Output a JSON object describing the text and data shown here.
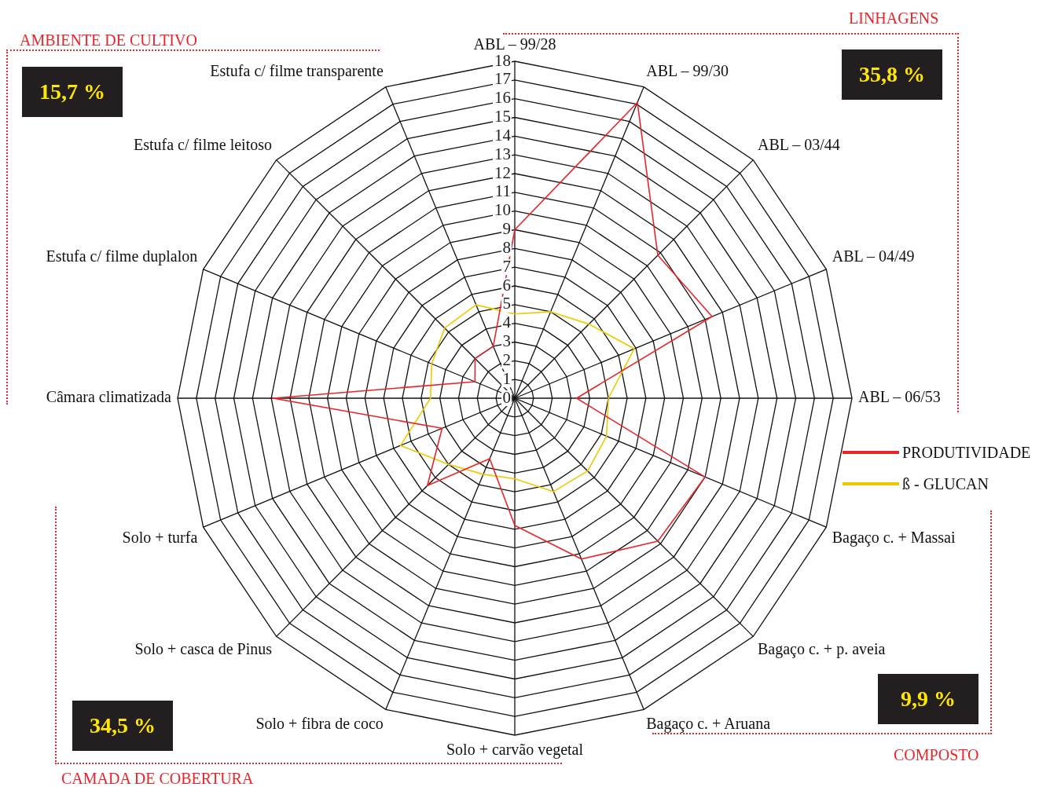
{
  "chart_data": {
    "type": "radar",
    "categories": [
      "ABL – 99/28",
      "ABL – 99/30",
      "ABL – 03/44",
      "ABL – 04/49",
      "ABL – 06/53",
      "Bagaço c. + Massai",
      "Bagaço c. + p. aveia",
      "Bagaço c. + Aruana",
      "Solo + carvão vegetal",
      "Solo + fibra de coco",
      "Solo + casca de Pinus",
      "Solo + turfa",
      "Câmara climatizada",
      "Estufa c/ filme duplalon",
      "Estufa c/ filme leitoso",
      "Estufa c/ filme transparente"
    ],
    "series": [
      {
        "name": "PRODUTIVIDADE",
        "color": "#e8262a",
        "values": [
          9,
          17.1,
          10.8,
          11.4,
          3.3,
          11,
          10.8,
          9.3,
          6.8,
          3.5,
          6.6,
          4.2,
          12.9,
          2.3,
          3,
          3
        ]
      },
      {
        "name": "ß - GLUCAN",
        "color": "#f0c800",
        "values": [
          4.5,
          5,
          5.6,
          6.9,
          5,
          5.3,
          5.5,
          5.4,
          4.3,
          4.4,
          5,
          6.6,
          4.5,
          4.8,
          5.3,
          5.4
        ]
      }
    ],
    "ylim": [
      0,
      18
    ],
    "yticks": [
      0,
      1,
      2,
      3,
      4,
      5,
      6,
      7,
      8,
      9,
      10,
      11,
      12,
      13,
      14,
      15,
      16,
      17,
      18
    ],
    "grid": true,
    "legend": "right",
    "marker": "none",
    "line_style": "solid",
    "annotations": [
      "AMBIENTE DE CULTIVO",
      "15,7 %",
      "LINHAGENS",
      "35,8 %",
      "COMPOSTO",
      "9,9 %",
      "CAMADA DE COBERTURA",
      "34,5 %"
    ]
  }
}
